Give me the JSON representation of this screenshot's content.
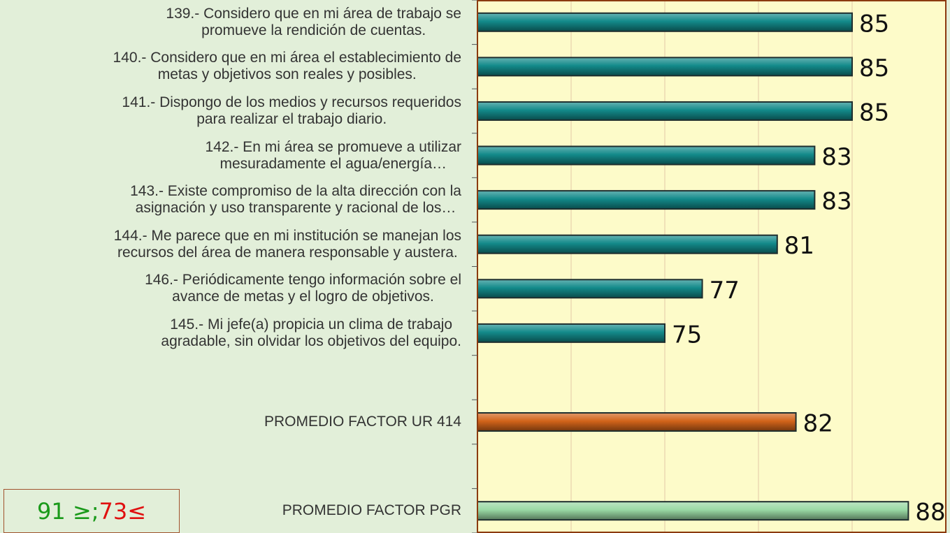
{
  "chart_data": {
    "type": "bar",
    "orientation": "horizontal",
    "categories": [
      "139.- Considero que en mi área de trabajo se\npromueve la rendición de cuentas.",
      "140.- Considero que en mi área el establecimiento de\nmetas y objetivos son reales y posibles.",
      "141.- Dispongo de los medios y recursos requeridos\npara realizar el trabajo diario.",
      "142.- En mi área se promueve a utilizar\nmesuradamente el agua/energía…",
      "143.- Existe compromiso de la alta dirección con la\nasignación y uso transparente y racional de los…",
      "144.- Me parece que en mi institución se manejan los\nrecursos del área de manera responsable y austera.",
      "146.- Periódicamente tengo información sobre el\navance de metas y el logro de objetivos.",
      "145.- Mi jefe(a) propicia un clima de trabajo\nagradable, sin olvidar los objetivos del equipo.",
      null,
      "PROMEDIO FACTOR UR 414",
      null,
      "PROMEDIO FACTOR PGR"
    ],
    "values": [
      85,
      85,
      85,
      83,
      83,
      81,
      77,
      75,
      null,
      82,
      null,
      88
    ],
    "colors": [
      "#138a8a",
      "#138a8a",
      "#138a8a",
      "#138a8a",
      "#138a8a",
      "#138a8a",
      "#138a8a",
      "#138a8a",
      null,
      "#d2641a",
      null,
      "#9ad9a4"
    ],
    "xlim": [
      65,
      90
    ],
    "xticks": [
      65,
      70,
      75,
      80,
      85,
      90
    ],
    "grid": true,
    "range_note": {
      "high": "91 ≥;",
      "low": "73≤"
    }
  }
}
